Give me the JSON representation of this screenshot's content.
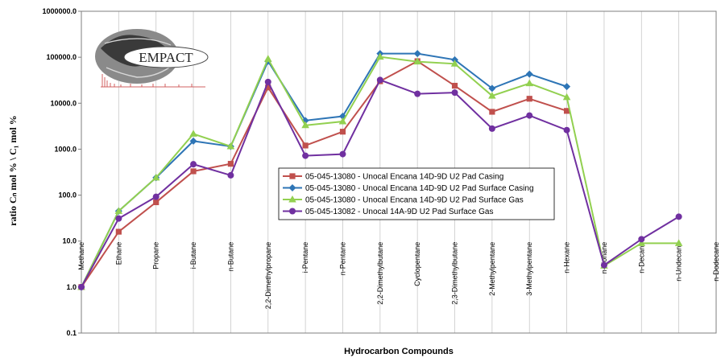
{
  "chart_data": {
    "type": "line",
    "y_scale": "log",
    "xlabel": "Hydrocarbon Compounds",
    "ylabel": "ratio Cₙ mol % \\ C₁ mol %",
    "ylim": [
      0.1,
      1000000
    ],
    "ytick_labels": [
      "0.1",
      "1.0",
      "10.0",
      "100.0",
      "1000.0",
      "10000.0",
      "100000.0",
      "1000000.0"
    ],
    "ytick_values": [
      0.1,
      1,
      10,
      100,
      1000,
      10000,
      100000,
      1000000
    ],
    "grid": "vertical major gridlines",
    "legend_position": "center",
    "categories": [
      "Methane",
      "Ethane",
      "Propane",
      "i-Butane",
      "n-Butane",
      "2,2-Dimethylpropane",
      "i-Pentane",
      "n-Pentane",
      "2,2-Dimethylbutane",
      "Cyclopentane",
      "2,3-Dimethylbutane",
      "2-Methylpentane",
      "3-Methylpentane",
      "n-Hexane",
      "n-Nonane",
      "n-Decane",
      "n-Undecane",
      "n-Dodecane"
    ],
    "series": [
      {
        "name": "05-045-13080 - Unocal Encana 14D-9D  U2 Pad Casing",
        "color": "#c0504d",
        "marker": "square",
        "values": [
          1,
          16,
          70,
          330,
          480,
          22000,
          1200,
          2400,
          30000,
          82000,
          24000,
          6500,
          12500,
          6800,
          null,
          null,
          null,
          null
        ]
      },
      {
        "name": "05-045-13080 - Unocal Encana 14D-9D U2 Pad  Surface Casing",
        "color": "#2e75b6",
        "marker": "diamond",
        "values": [
          1,
          45,
          240,
          1500,
          1150,
          82000,
          4200,
          5200,
          120000,
          120000,
          88000,
          21000,
          43000,
          23000,
          null,
          null,
          null,
          null
        ]
      },
      {
        "name": "05-045-13080 - Unocal Encana 14D-9D U2 Pad Surface Gas",
        "color": "#92d050",
        "marker": "triangle",
        "values": [
          1,
          45,
          240,
          2150,
          1150,
          92000,
          3300,
          4000,
          102000,
          80000,
          72000,
          14500,
          27000,
          13500,
          2.9,
          9,
          9,
          null
        ]
      },
      {
        "name": "05-045-13082 - Unocal 14A-9D U2 Pad  Surface Gas",
        "color": "#7030a0",
        "marker": "circle",
        "values": [
          1,
          31,
          92,
          470,
          270,
          29000,
          720,
          780,
          32000,
          16000,
          17000,
          2800,
          5400,
          2600,
          3,
          11,
          34,
          null
        ]
      }
    ]
  },
  "logo": {
    "text": "EMPACT"
  }
}
